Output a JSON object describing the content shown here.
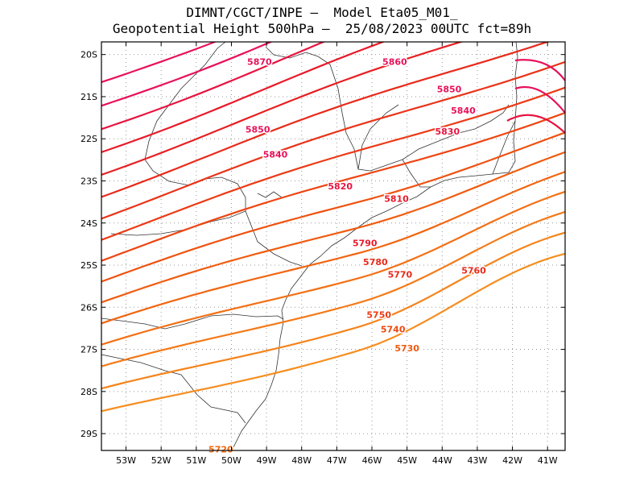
{
  "header": {
    "line1": "DIMNT/CGCT/INPE –  Model Eta05_M01_",
    "line2": "Geopotential Height 500hPa –  25/08/2023 00UTC fct=89h"
  },
  "map": {
    "lon_range": [
      -53.7,
      -40.5
    ],
    "lat_range": [
      -29.4,
      -19.7
    ],
    "x_ticks": [
      {
        "lon": -53,
        "label": "53W"
      },
      {
        "lon": -52,
        "label": "52W"
      },
      {
        "lon": -51,
        "label": "51W"
      },
      {
        "lon": -50,
        "label": "50W"
      },
      {
        "lon": -49,
        "label": "49W"
      },
      {
        "lon": -48,
        "label": "48W"
      },
      {
        "lon": -47,
        "label": "47W"
      },
      {
        "lon": -46,
        "label": "46W"
      },
      {
        "lon": -45,
        "label": "45W"
      },
      {
        "lon": -44,
        "label": "44W"
      },
      {
        "lon": -43,
        "label": "43W"
      },
      {
        "lon": -42,
        "label": "42W"
      },
      {
        "lon": -41,
        "label": "41W"
      }
    ],
    "y_ticks": [
      {
        "lat": -20,
        "label": "20S"
      },
      {
        "lat": -21,
        "label": "21S"
      },
      {
        "lat": -22,
        "label": "22S"
      },
      {
        "lat": -23,
        "label": "23S"
      },
      {
        "lat": -24,
        "label": "24S"
      },
      {
        "lat": -25,
        "label": "25S"
      },
      {
        "lat": -26,
        "label": "26S"
      },
      {
        "lat": -27,
        "label": "27S"
      },
      {
        "lat": -28,
        "label": "28S"
      },
      {
        "lat": -29,
        "label": "29S"
      }
    ],
    "contour_labels": [
      {
        "text": "5870",
        "lon": -49.2,
        "lat": -20.25,
        "color": "#e8115a"
      },
      {
        "text": "5860",
        "lon": -45.35,
        "lat": -20.25,
        "color": "#e8115a"
      },
      {
        "text": "5850",
        "lon": -43.8,
        "lat": -20.9,
        "color": "#e8115a"
      },
      {
        "text": "5840",
        "lon": -43.4,
        "lat": -21.4,
        "color": "#e8115a"
      },
      {
        "text": "5850",
        "lon": -49.25,
        "lat": -21.85,
        "color": "#e8115a"
      },
      {
        "text": "5830",
        "lon": -43.85,
        "lat": -21.9,
        "color": "#e81440"
      },
      {
        "text": "5840",
        "lon": -48.75,
        "lat": -22.45,
        "color": "#e8115a"
      },
      {
        "text": "5820",
        "lon": -46.9,
        "lat": -23.2,
        "color": "#e81440"
      },
      {
        "text": "5810",
        "lon": -45.3,
        "lat": -23.5,
        "color": "#e81a2a"
      },
      {
        "text": "5790",
        "lon": -46.2,
        "lat": -24.55,
        "color": "#e81a2a"
      },
      {
        "text": "5780",
        "lon": -45.9,
        "lat": -25.0,
        "color": "#e82a1a"
      },
      {
        "text": "5770",
        "lon": -45.2,
        "lat": -25.3,
        "color": "#e82a1a"
      },
      {
        "text": "5760",
        "lon": -43.1,
        "lat": -25.2,
        "color": "#e82a1a"
      },
      {
        "text": "5750",
        "lon": -45.8,
        "lat": -26.25,
        "color": "#ec3a15"
      },
      {
        "text": "5740",
        "lon": -45.4,
        "lat": -26.6,
        "color": "#ec4a10"
      },
      {
        "text": "5730",
        "lon": -45.0,
        "lat": -27.05,
        "color": "#ee5a10"
      },
      {
        "text": "5720",
        "lon": -50.3,
        "lat": -29.45,
        "color": "#f06a10"
      }
    ]
  }
}
